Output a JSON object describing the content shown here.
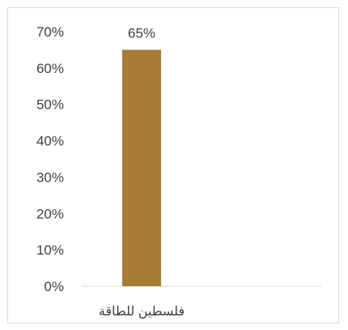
{
  "chart_data": {
    "type": "bar",
    "categories": [
      "فلسطين للطاقة"
    ],
    "values": [
      65
    ],
    "value_labels": [
      "65%"
    ],
    "ylim": [
      0,
      70
    ],
    "y_ticks": [
      0,
      10,
      20,
      30,
      40,
      50,
      60,
      70
    ],
    "y_tick_labels": [
      "0%",
      "10%",
      "20%",
      "30%",
      "40%",
      "50%",
      "60%",
      "70%"
    ],
    "grid": false,
    "legend": "none",
    "colors": {
      "bar": "#A67C37",
      "axis": "#d9d9d9",
      "text": "#404040"
    }
  }
}
